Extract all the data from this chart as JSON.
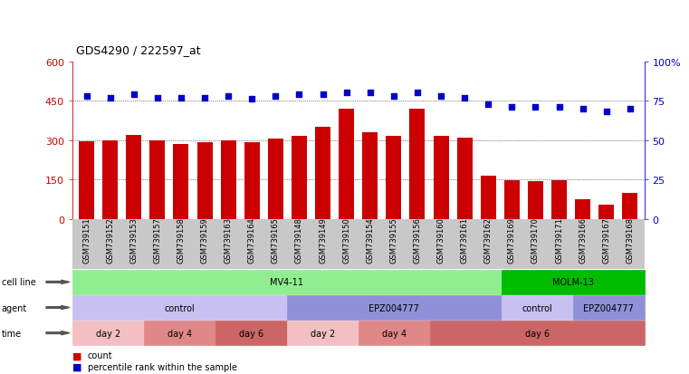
{
  "title": "GDS4290 / 222597_at",
  "samples": [
    "GSM739151",
    "GSM739152",
    "GSM739153",
    "GSM739157",
    "GSM739158",
    "GSM739159",
    "GSM739163",
    "GSM739164",
    "GSM739165",
    "GSM739148",
    "GSM739149",
    "GSM739150",
    "GSM739154",
    "GSM739155",
    "GSM739156",
    "GSM739160",
    "GSM739161",
    "GSM739162",
    "GSM739169",
    "GSM739170",
    "GSM739171",
    "GSM739166",
    "GSM739167",
    "GSM739168"
  ],
  "counts": [
    295,
    298,
    320,
    298,
    285,
    292,
    298,
    292,
    305,
    315,
    350,
    420,
    330,
    315,
    420,
    315,
    310,
    165,
    148,
    145,
    148,
    75,
    55,
    100
  ],
  "percentiles": [
    78,
    77,
    79,
    77,
    77,
    77,
    78,
    76,
    78,
    79,
    79,
    80,
    80,
    78,
    80,
    78,
    77,
    73,
    71,
    71,
    71,
    70,
    68,
    70
  ],
  "bar_color": "#cc0000",
  "dot_color": "#0000cc",
  "ylim_left": [
    0,
    600
  ],
  "ylim_right": [
    0,
    100
  ],
  "yticks_left": [
    0,
    150,
    300,
    450,
    600
  ],
  "yticks_right": [
    0,
    25,
    50,
    75,
    100
  ],
  "cell_line_groups": [
    {
      "label": "MV4-11",
      "start": 0,
      "end": 18,
      "color": "#90ee90"
    },
    {
      "label": "MOLM-13",
      "start": 18,
      "end": 24,
      "color": "#00bb00"
    }
  ],
  "agent_groups": [
    {
      "label": "control",
      "start": 0,
      "end": 9,
      "color": "#c8c0f0"
    },
    {
      "label": "EPZ004777",
      "start": 9,
      "end": 18,
      "color": "#9090d8"
    },
    {
      "label": "control",
      "start": 18,
      "end": 21,
      "color": "#c8c0f0"
    },
    {
      "label": "EPZ004777",
      "start": 21,
      "end": 24,
      "color": "#9090d8"
    }
  ],
  "time_groups": [
    {
      "label": "day 2",
      "start": 0,
      "end": 3,
      "color": "#f2c0c0"
    },
    {
      "label": "day 4",
      "start": 3,
      "end": 6,
      "color": "#e08888"
    },
    {
      "label": "day 6",
      "start": 6,
      "end": 9,
      "color": "#cc6666"
    },
    {
      "label": "day 2",
      "start": 9,
      "end": 12,
      "color": "#f2c0c0"
    },
    {
      "label": "day 4",
      "start": 12,
      "end": 15,
      "color": "#e08888"
    },
    {
      "label": "day 6",
      "start": 15,
      "end": 24,
      "color": "#cc6666"
    }
  ],
  "row_labels": [
    "cell line",
    "agent",
    "time"
  ],
  "row_arrow_color": "#555555",
  "bg_color": "#ffffff",
  "axis_left_color": "#cc0000",
  "axis_right_color": "#0000cc",
  "grid_color": "#444444",
  "tick_bg_color": "#c8c8c8"
}
